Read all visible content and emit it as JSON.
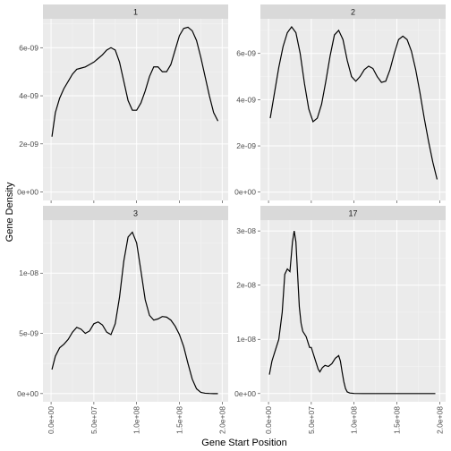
{
  "chart_data": {
    "type": "line",
    "xlabel": "Gene Start Position",
    "ylabel": "Gene Density",
    "grid": true,
    "x_ticks": [
      {
        "value": 0,
        "label": "0.0e+00"
      },
      {
        "value": 50000000,
        "label": "5.0e+07"
      },
      {
        "value": 100000000,
        "label": "1.0e+08"
      },
      {
        "value": 150000000,
        "label": "1.5e+08"
      },
      {
        "value": 200000000,
        "label": "2.0e+08"
      }
    ],
    "xlim": [
      -9500000,
      207000000
    ],
    "panels": [
      {
        "strip": "1",
        "ylim": [
          -3.5e-10,
          7.2e-09
        ],
        "y_ticks": [
          {
            "value": 0,
            "label": "0e+00"
          },
          {
            "value": 2e-09,
            "label": "2e-09"
          },
          {
            "value": 4e-09,
            "label": "4e-09"
          },
          {
            "value": 6e-09,
            "label": "6e-09"
          }
        ],
        "x": [
          1000000,
          5000000,
          10000000,
          15000000,
          20000000,
          25000000,
          30000000,
          35000000,
          40000000,
          45000000,
          50000000,
          55000000,
          60000000,
          65000000,
          70000000,
          75000000,
          80000000,
          85000000,
          90000000,
          95000000,
          100000000,
          105000000,
          110000000,
          115000000,
          120000000,
          125000000,
          130000000,
          135000000,
          140000000,
          145000000,
          150000000,
          155000000,
          160000000,
          165000000,
          170000000,
          175000000,
          180000000,
          185000000,
          190000000,
          195000000
        ],
        "y": [
          2.3e-09,
          3.3e-09,
          3.9e-09,
          4.3e-09,
          4.6e-09,
          4.9e-09,
          5.1e-09,
          5.15e-09,
          5.2e-09,
          5.3e-09,
          5.4e-09,
          5.55e-09,
          5.7e-09,
          5.9e-09,
          6e-09,
          5.9e-09,
          5.4e-09,
          4.6e-09,
          3.8e-09,
          3.4e-09,
          3.4e-09,
          3.7e-09,
          4.2e-09,
          4.8e-09,
          5.2e-09,
          5.2e-09,
          5e-09,
          5e-09,
          5.3e-09,
          5.9e-09,
          6.5e-09,
          6.8e-09,
          6.85e-09,
          6.7e-09,
          6.3e-09,
          5.6e-09,
          4.8e-09,
          4e-09,
          3.3e-09,
          2.95e-09
        ]
      },
      {
        "strip": "2",
        "ylim": [
          -3.6e-10,
          7.5e-09
        ],
        "y_ticks": [
          {
            "value": 0,
            "label": "0e+00"
          },
          {
            "value": 2e-09,
            "label": "2e-09"
          },
          {
            "value": 4e-09,
            "label": "4e-09"
          },
          {
            "value": 6e-09,
            "label": "6e-09"
          }
        ],
        "x": [
          2000000,
          7000000,
          12000000,
          17000000,
          22000000,
          27000000,
          32000000,
          37000000,
          42000000,
          47000000,
          52000000,
          57000000,
          62000000,
          67000000,
          72000000,
          77000000,
          82000000,
          87000000,
          92000000,
          97000000,
          102000000,
          107000000,
          112000000,
          117000000,
          122000000,
          127000000,
          132000000,
          137000000,
          142000000,
          147000000,
          152000000,
          157000000,
          162000000,
          167000000,
          172000000,
          177000000,
          182000000,
          187000000,
          192000000,
          197000000
        ],
        "y": [
          3.2e-09,
          4.3e-09,
          5.4e-09,
          6.3e-09,
          6.9e-09,
          7.15e-09,
          6.9e-09,
          6e-09,
          4.7e-09,
          3.6e-09,
          3.05e-09,
          3.2e-09,
          3.8e-09,
          4.8e-09,
          5.9e-09,
          6.8e-09,
          7e-09,
          6.6e-09,
          5.7e-09,
          5e-09,
          4.8e-09,
          5e-09,
          5.3e-09,
          5.45e-09,
          5.35e-09,
          5e-09,
          4.75e-09,
          4.8e-09,
          5.3e-09,
          6e-09,
          6.6e-09,
          6.75e-09,
          6.6e-09,
          6.1e-09,
          5.3e-09,
          4.3e-09,
          3.2e-09,
          2.2e-09,
          1.3e-09,
          5.5e-10
        ]
      },
      {
        "strip": "3",
        "ylim": [
          -6.8e-10,
          1.44e-08
        ],
        "y_ticks": [
          {
            "value": 0,
            "label": "0e+00"
          },
          {
            "value": 5e-09,
            "label": "5e-09"
          },
          {
            "value": 1e-08,
            "label": "1e-08"
          }
        ],
        "x": [
          1000000,
          5000000,
          10000000,
          15000000,
          20000000,
          25000000,
          30000000,
          35000000,
          40000000,
          45000000,
          50000000,
          55000000,
          60000000,
          65000000,
          70000000,
          75000000,
          80000000,
          85000000,
          90000000,
          95000000,
          100000000,
          105000000,
          110000000,
          115000000,
          120000000,
          125000000,
          130000000,
          135000000,
          140000000,
          145000000,
          150000000,
          155000000,
          160000000,
          165000000,
          170000000,
          175000000,
          180000000,
          185000000,
          190000000,
          195000000
        ],
        "y": [
          2e-09,
          3.1e-09,
          3.8e-09,
          4.1e-09,
          4.5e-09,
          5.1e-09,
          5.5e-09,
          5.35e-09,
          5e-09,
          5.2e-09,
          5.8e-09,
          5.95e-09,
          5.7e-09,
          5.1e-09,
          4.9e-09,
          5.8e-09,
          8e-09,
          1.1e-08,
          1.3e-08,
          1.34e-08,
          1.25e-08,
          1.02e-08,
          7.8e-09,
          6.5e-09,
          6.1e-09,
          6.2e-09,
          6.4e-09,
          6.35e-09,
          6.1e-09,
          5.6e-09,
          4.9e-09,
          3.9e-09,
          2.5e-09,
          1.2e-09,
          4e-10,
          1e-10,
          3e-11,
          1e-11,
          0,
          0
        ]
      },
      {
        "strip": "17",
        "ylim": [
          -1.52e-09,
          3.2e-08
        ],
        "y_ticks": [
          {
            "value": 0,
            "label": "0e+00"
          },
          {
            "value": 1e-08,
            "label": "1e-08"
          },
          {
            "value": 2e-08,
            "label": "2e-08"
          },
          {
            "value": 3e-08,
            "label": "3e-08"
          }
        ],
        "x": [
          1000000,
          4000000,
          8000000,
          12000000,
          16000000,
          19000000,
          22000000,
          25000000,
          28000000,
          30000000,
          32000000,
          34000000,
          36000000,
          38000000,
          40000000,
          42000000,
          44000000,
          46000000,
          48000000,
          50000000,
          52000000,
          54000000,
          56000000,
          58000000,
          60000000,
          63000000,
          66000000,
          70000000,
          74000000,
          78000000,
          82000000,
          84000000,
          86000000,
          88000000,
          90000000,
          92000000,
          95000000,
          100000000,
          110000000,
          130000000,
          160000000,
          195000000
        ],
        "y": [
          3.5e-09,
          6e-09,
          8e-09,
          1e-08,
          1.5e-08,
          2.2e-08,
          2.3e-08,
          2.25e-08,
          2.8e-08,
          3e-08,
          2.8e-08,
          2.2e-08,
          1.6e-08,
          1.3e-08,
          1.15e-08,
          1.1e-08,
          1.05e-08,
          9.5e-09,
          8.5e-09,
          8.5e-09,
          7.5e-09,
          6.5e-09,
          5.5e-09,
          4.5e-09,
          4e-09,
          4.8e-09,
          5.2e-09,
          5e-09,
          5.5e-09,
          6.5e-09,
          7e-09,
          6e-09,
          4e-09,
          2.2e-09,
          9e-10,
          3e-10,
          1e-10,
          2e-11,
          0,
          0,
          0,
          0
        ]
      }
    ]
  }
}
